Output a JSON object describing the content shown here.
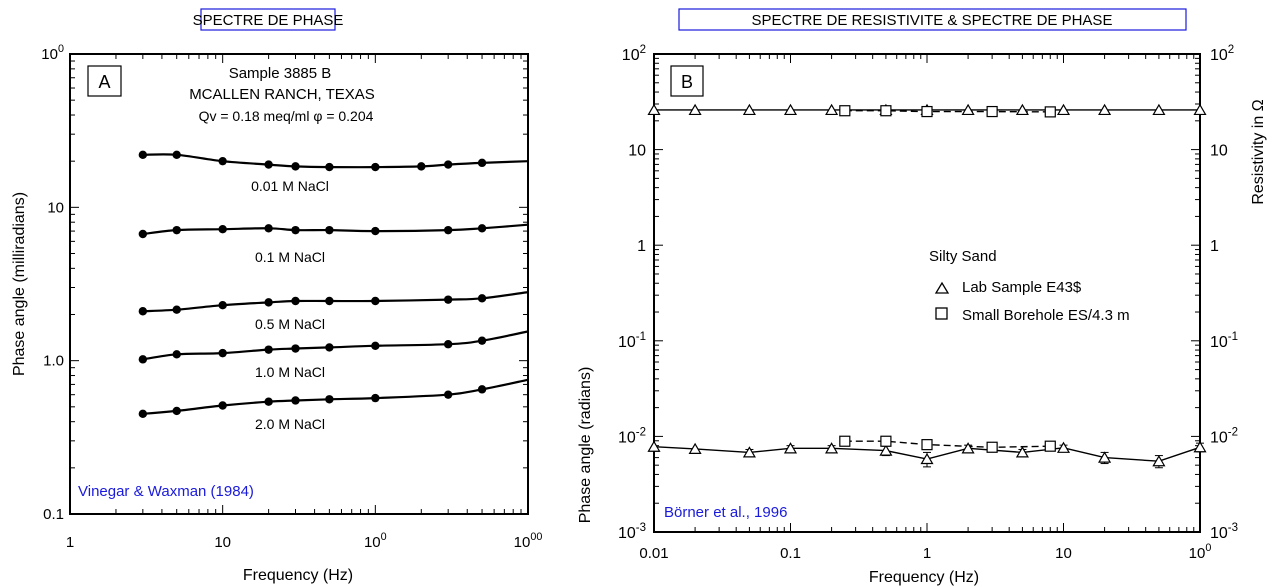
{
  "chart_data": [
    {
      "type": "line",
      "title": "SPECTRE DE PHASE",
      "panel_label": "A",
      "xlabel": "Frequency (Hz)",
      "ylabel": "Phase angle (milliradians)",
      "x_scale": "log",
      "y_scale": "log",
      "xlim": [
        1,
        1000
      ],
      "ylim": [
        0.1,
        100
      ],
      "x_ticks": [
        "1",
        "10",
        "100",
        "1000"
      ],
      "y_ticks": [
        "0.1",
        "1.0",
        "10",
        "100"
      ],
      "annotation_lines": [
        "Sample 3885 B",
        "MCALLEN RANCH, TEXAS",
        "Qv = 0.18 meq/ml φ = 0.204"
      ],
      "citation": "Vinegar & Waxman (1984)",
      "series": [
        {
          "name": "0.01 M NaCl",
          "x": [
            3,
            5,
            10,
            20,
            30,
            50,
            100,
            200,
            300,
            500
          ],
          "y": [
            22,
            22,
            20,
            19,
            18.5,
            18.3,
            18.3,
            18.5,
            19,
            19.5
          ],
          "curve_end": [
            1000,
            20
          ]
        },
        {
          "name": "0.1 M NaCl",
          "x": [
            3,
            5,
            10,
            20,
            30,
            50,
            100,
            300,
            500
          ],
          "y": [
            6.7,
            7.1,
            7.2,
            7.3,
            7.1,
            7.1,
            7.0,
            7.1,
            7.3
          ],
          "curve_end": [
            1000,
            7.7
          ]
        },
        {
          "name": "0.5 M NaCl",
          "x": [
            3,
            5,
            10,
            20,
            30,
            50,
            100,
            300,
            500
          ],
          "y": [
            2.1,
            2.15,
            2.3,
            2.4,
            2.45,
            2.45,
            2.45,
            2.5,
            2.55
          ],
          "curve_end": [
            1000,
            2.8
          ]
        },
        {
          "name": "1.0 M NaCl",
          "x": [
            3,
            5,
            10,
            20,
            30,
            50,
            100,
            300,
            500
          ],
          "y": [
            1.02,
            1.1,
            1.12,
            1.18,
            1.2,
            1.22,
            1.25,
            1.28,
            1.35
          ],
          "curve_end": [
            1000,
            1.55
          ]
        },
        {
          "name": "2.0 M NaCl",
          "x": [
            3,
            5,
            10,
            20,
            30,
            50,
            100,
            300,
            500
          ],
          "y": [
            0.45,
            0.47,
            0.51,
            0.54,
            0.55,
            0.56,
            0.57,
            0.6,
            0.65
          ],
          "curve_end": [
            1000,
            0.75
          ]
        }
      ]
    },
    {
      "type": "line",
      "title": "SPECTRE DE RESISTIVITE  & SPECTRE DE PHASE",
      "panel_label": "B",
      "xlabel": "Frequency (Hz)",
      "ylabel": "Phase angle (radians)",
      "ylabel_right": "Resistivity in  Ω",
      "x_scale": "log",
      "y_scale": "log",
      "xlim": [
        0.01,
        100
      ],
      "ylim": [
        0.001,
        100
      ],
      "x_ticks": [
        "0.01",
        "0.1",
        "1",
        "10",
        "100"
      ],
      "y_ticks_left": [
        "10-3",
        "10-2",
        "10-1",
        "1",
        "10",
        "102"
      ],
      "y_ticks_right": [
        "10-3",
        "10-2",
        "10-1",
        "1",
        "10",
        "102"
      ],
      "legend_title": "Silty Sand",
      "citation": "Börner et al., 1996",
      "series": [
        {
          "name": "Lab Sample E43$",
          "marker": "triangle",
          "quantity": "resistivity",
          "x": [
            0.01,
            0.02,
            0.05,
            0.1,
            0.2,
            0.5,
            1,
            2,
            5,
            10,
            20,
            50,
            100
          ],
          "y": [
            26,
            26,
            26,
            26,
            26,
            26,
            26,
            26,
            26,
            26,
            26,
            26,
            26
          ]
        },
        {
          "name": "Small Borehole ES/4.3 m",
          "marker": "square",
          "quantity": "resistivity",
          "x": [
            0.25,
            0.5,
            1,
            3,
            8
          ],
          "y": [
            25.5,
            25.5,
            25,
            25,
            24.8
          ]
        },
        {
          "name": "Lab Sample E43$",
          "marker": "triangle",
          "quantity": "phase",
          "x": [
            0.01,
            0.02,
            0.05,
            0.1,
            0.2,
            0.5,
            1,
            2,
            5,
            10,
            20,
            50,
            100
          ],
          "y": [
            0.0078,
            0.0074,
            0.0068,
            0.0075,
            0.0075,
            0.0071,
            0.0058,
            0.0075,
            0.0068,
            0.0076,
            0.006,
            0.0055,
            0.0077
          ],
          "error": [
            0,
            0,
            0.0005,
            0.0005,
            0.0005,
            0.0008,
            0.001,
            0.0006,
            0.0005,
            0.0005,
            0.0008,
            0.0008,
            0.0008
          ]
        },
        {
          "name": "Small Borehole ES/4.3 m",
          "marker": "square",
          "quantity": "phase",
          "x": [
            0.25,
            0.5,
            1,
            3,
            8
          ],
          "y": [
            0.0089,
            0.0089,
            0.0082,
            0.0077,
            0.0079
          ],
          "error": [
            0.0009,
            0.0009,
            0.0009,
            0.0008,
            0.0008
          ]
        }
      ]
    }
  ]
}
